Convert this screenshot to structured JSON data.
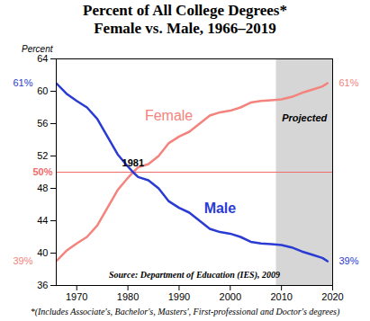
{
  "chart_data": {
    "type": "line",
    "title": "Percent of All College Degrees*",
    "subtitle": "Female vs. Male, 1966–2019",
    "y_label": "Percent",
    "x": [
      1966,
      1968,
      1970,
      1972,
      1974,
      1976,
      1978,
      1980,
      1981,
      1982,
      1984,
      1986,
      1988,
      1990,
      1992,
      1994,
      1996,
      1998,
      2000,
      2002,
      2004,
      2006,
      2008,
      2010,
      2012,
      2014,
      2016,
      2018,
      2019
    ],
    "series": [
      {
        "name": "Female",
        "color": "#f4837d",
        "values": [
          39,
          40.3,
          41.2,
          42.0,
          43.4,
          45.6,
          47.8,
          49.3,
          50,
          50.6,
          51.0,
          52.0,
          53.6,
          54.4,
          55.0,
          56.0,
          57.0,
          57.4,
          57.6,
          58.0,
          58.6,
          58.8,
          58.9,
          59.0,
          59.3,
          59.8,
          60.2,
          60.6,
          61
        ],
        "start_label": "39%",
        "end_label": "61%"
      },
      {
        "name": "Male",
        "color": "#2a3bd4",
        "values": [
          61,
          59.7,
          58.8,
          58.0,
          56.6,
          54.4,
          52.2,
          50.7,
          50,
          49.4,
          49.0,
          48.0,
          46.4,
          45.6,
          45.0,
          44.0,
          43.0,
          42.6,
          42.4,
          42.0,
          41.4,
          41.2,
          41.1,
          41.0,
          40.7,
          40.2,
          39.8,
          39.4,
          39
        ],
        "start_label": "61%",
        "end_label": "39%"
      }
    ],
    "xlim": [
      1966,
      2020
    ],
    "xticks": [
      1970,
      1980,
      1990,
      2000,
      2010,
      2020
    ],
    "ylim": [
      36,
      64
    ],
    "yticks": [
      36,
      40,
      44,
      48,
      52,
      56,
      60,
      64
    ],
    "grid": false,
    "reference_line": {
      "value": 50,
      "label": "50%",
      "color": "#f26b6b"
    },
    "shaded_region": {
      "from": 2009,
      "to": 2020,
      "label": "Projected"
    },
    "annotations": [
      {
        "text": "1981",
        "x": 1981,
        "y": 50
      }
    ],
    "source": "Source: Department of Education (IES), 2009",
    "note": "*(Includes Associate's, Bachelor's, Masters', First-professional and Doctor's degrees)"
  }
}
